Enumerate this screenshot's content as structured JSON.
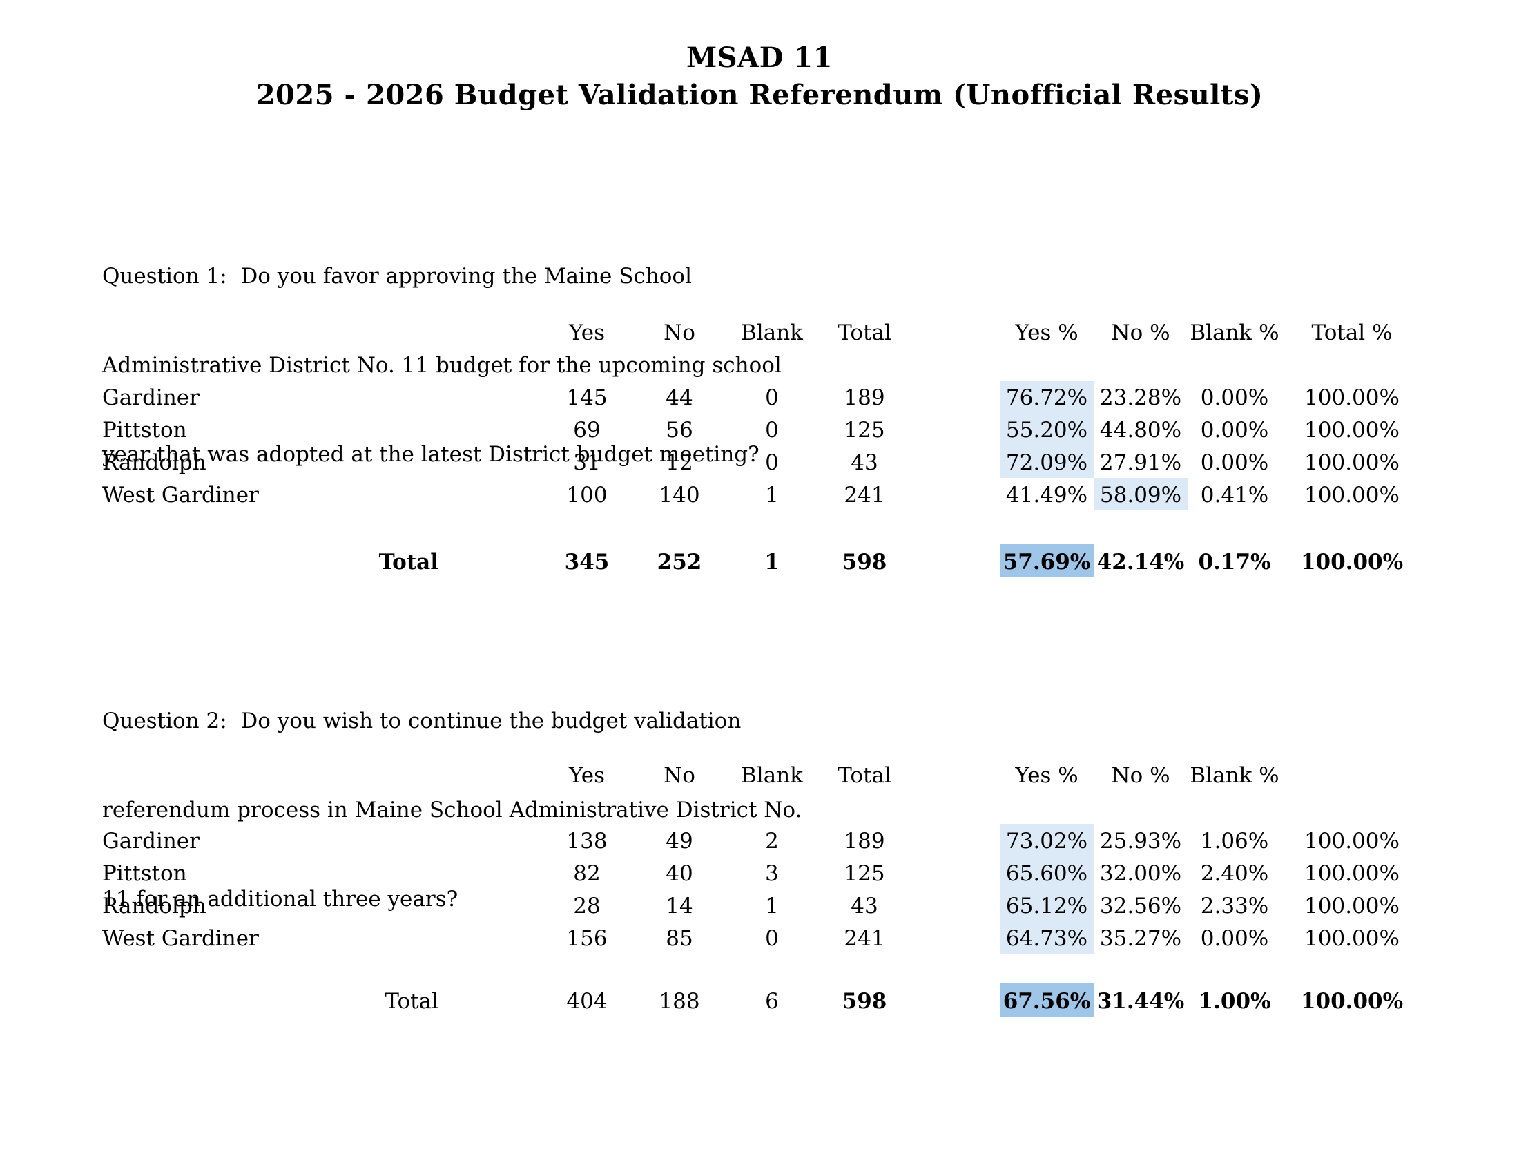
{
  "title": {
    "line1": "MSAD 11",
    "line2": "2025 - 2026 Budget Validation Referendum (Unofficial Results)"
  },
  "colors": {
    "highlight_light": "#dce9f7",
    "highlight_dark": "#9fc5e8"
  },
  "q1": {
    "question_lines": {
      "l1": "Question 1:  Do you favor approving the Maine School",
      "l2": "Administrative District No. 11 budget for the upcoming school",
      "l3": "year that was adopted at the latest District budget meeting?"
    },
    "headers": {
      "yes": "Yes",
      "no": "No",
      "blank": "Blank",
      "total": "Total",
      "yes_pct": "Yes %",
      "no_pct": "No %",
      "blank_pct": "Blank %",
      "total_pct": "Total %"
    },
    "rows": [
      {
        "town": "Gardiner",
        "yes": "145",
        "no": "44",
        "blank": "0",
        "total": "189",
        "yes_pct": "76.72%",
        "no_pct": "23.28%",
        "blank_pct": "0.00%",
        "total_pct": "100.00%"
      },
      {
        "town": "Pittston",
        "yes": "69",
        "no": "56",
        "blank": "0",
        "total": "125",
        "yes_pct": "55.20%",
        "no_pct": "44.80%",
        "blank_pct": "0.00%",
        "total_pct": "100.00%"
      },
      {
        "town": "Randolph",
        "yes": "31",
        "no": "12",
        "blank": "0",
        "total": "43",
        "yes_pct": "72.09%",
        "no_pct": "27.91%",
        "blank_pct": "0.00%",
        "total_pct": "100.00%"
      },
      {
        "town": "West Gardiner",
        "yes": "100",
        "no": "140",
        "blank": "1",
        "total": "241",
        "yes_pct": "41.49%",
        "no_pct": "58.09%",
        "blank_pct": "0.41%",
        "total_pct": "100.00%"
      }
    ],
    "total": {
      "label": "Total",
      "yes": "345",
      "no": "252",
      "blank": "1",
      "total": "598",
      "yes_pct": "57.69%",
      "no_pct": "42.14%",
      "blank_pct": "0.17%",
      "total_pct": "100.00%"
    }
  },
  "q2": {
    "question_lines": {
      "l1": "Question 2:  Do you wish to continue the budget validation",
      "l2": "referendum process in Maine School Administrative District No.",
      "l3": "11 for an additional three years?"
    },
    "headers": {
      "yes": "Yes",
      "no": "No",
      "blank": "Blank",
      "total": "Total",
      "yes_pct": "Yes %",
      "no_pct": "No %",
      "blank_pct": "Blank %"
    },
    "rows": [
      {
        "town": "Gardiner",
        "yes": "138",
        "no": "49",
        "blank": "2",
        "total": "189",
        "yes_pct": "73.02%",
        "no_pct": "25.93%",
        "blank_pct": "1.06%",
        "total_pct": "100.00%"
      },
      {
        "town": "Pittston",
        "yes": "82",
        "no": "40",
        "blank": "3",
        "total": "125",
        "yes_pct": "65.60%",
        "no_pct": "32.00%",
        "blank_pct": "2.40%",
        "total_pct": "100.00%"
      },
      {
        "town": "Randolph",
        "yes": "28",
        "no": "14",
        "blank": "1",
        "total": "43",
        "yes_pct": "65.12%",
        "no_pct": "32.56%",
        "blank_pct": "2.33%",
        "total_pct": "100.00%"
      },
      {
        "town": "West Gardiner",
        "yes": "156",
        "no": "85",
        "blank": "0",
        "total": "241",
        "yes_pct": "64.73%",
        "no_pct": "35.27%",
        "blank_pct": "0.00%",
        "total_pct": "100.00%"
      }
    ],
    "total": {
      "label": "Total",
      "yes": "404",
      "no": "188",
      "blank": "6",
      "total": "598",
      "yes_pct": "67.56%",
      "no_pct": "31.44%",
      "blank_pct": "1.00%",
      "total_pct": "100.00%"
    }
  }
}
